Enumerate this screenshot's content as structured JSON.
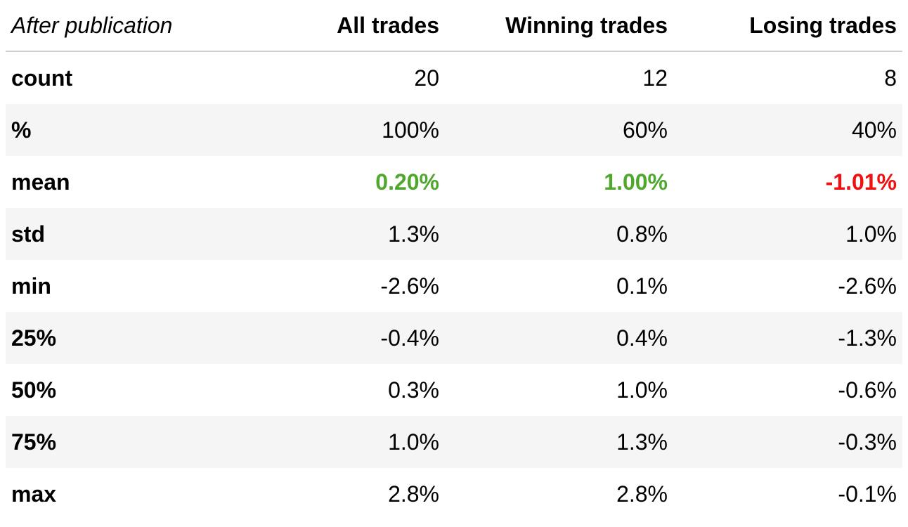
{
  "table": {
    "corner_label": "After publication",
    "columns": [
      "All trades",
      "Winning trades",
      "Losing trades"
    ],
    "rows": [
      {
        "label": "count",
        "values": [
          "20",
          "12",
          "8"
        ],
        "styles": [
          "",
          "",
          ""
        ]
      },
      {
        "label": "%",
        "values": [
          "100%",
          "60%",
          "40%"
        ],
        "styles": [
          "",
          "",
          ""
        ]
      },
      {
        "label": "mean",
        "values": [
          "0.20%",
          "1.00%",
          "-1.01%"
        ],
        "styles": [
          "pos",
          "pos",
          "neg"
        ]
      },
      {
        "label": "std",
        "values": [
          "1.3%",
          "0.8%",
          "1.0%"
        ],
        "styles": [
          "",
          "",
          ""
        ]
      },
      {
        "label": "min",
        "values": [
          "-2.6%",
          "0.1%",
          "-2.6%"
        ],
        "styles": [
          "",
          "",
          ""
        ]
      },
      {
        "label": "25%",
        "values": [
          "-0.4%",
          "0.4%",
          "-1.3%"
        ],
        "styles": [
          "",
          "",
          ""
        ]
      },
      {
        "label": "50%",
        "values": [
          "0.3%",
          "1.0%",
          "-0.6%"
        ],
        "styles": [
          "",
          "",
          ""
        ]
      },
      {
        "label": "75%",
        "values": [
          "1.0%",
          "1.3%",
          "-0.3%"
        ],
        "styles": [
          "",
          "",
          ""
        ]
      },
      {
        "label": "max",
        "values": [
          "2.8%",
          "2.8%",
          "-0.1%"
        ],
        "styles": [
          "",
          "",
          ""
        ]
      }
    ]
  },
  "colors": {
    "positive": "#4fa82d",
    "negative": "#f01010",
    "row_stripe": "#f5f5f5",
    "header_rule": "#cfcfcf"
  }
}
